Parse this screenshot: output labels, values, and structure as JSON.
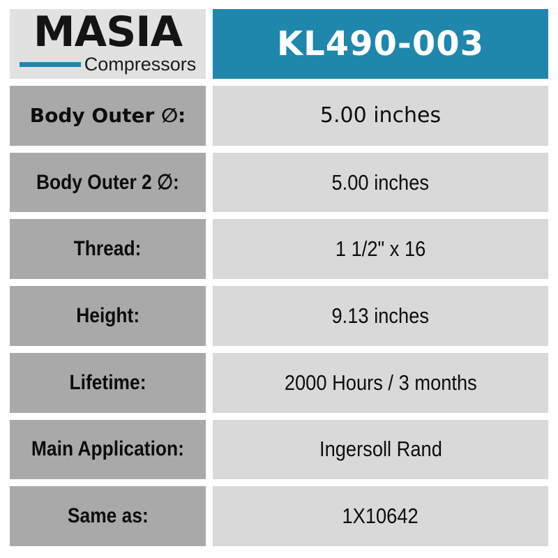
{
  "brand": {
    "name": "MASIA",
    "tagline": "Compressors"
  },
  "header": {
    "part_number": "KL490-003"
  },
  "colors": {
    "accent_teal": "#1f86ac",
    "label_gray": "#a9a9a9",
    "value_gray": "#d9d9d9",
    "logo_background": "#e1e1e1",
    "text_black": "#0d0d0d",
    "header_text": "#ffffff"
  },
  "specs": [
    {
      "label": "Body Outer ∅:",
      "value": "5.00 inches"
    },
    {
      "label": "Body Outer 2 ∅:",
      "value": "5.00 inches"
    },
    {
      "label": "Thread:",
      "value": "1 1/2\" x 16"
    },
    {
      "label": "Height:",
      "value": "9.13 inches"
    },
    {
      "label": "Lifetime:",
      "value": "2000 Hours / 3 months"
    },
    {
      "label": "Main Application:",
      "value": "Ingersoll Rand"
    },
    {
      "label": "Same as:",
      "value": "1X10642"
    }
  ]
}
